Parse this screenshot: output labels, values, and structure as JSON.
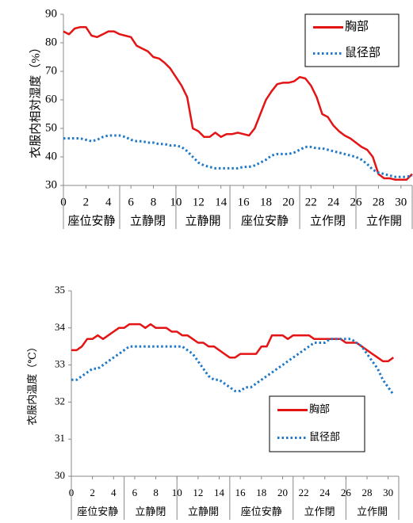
{
  "chart_data": [
    {
      "type": "line",
      "y_label": "衣服内相対湿度（%）",
      "x": [
        0,
        0.5,
        1,
        1.5,
        2,
        2.5,
        3,
        3.5,
        4,
        4.5,
        5,
        5.5,
        6,
        6.5,
        7,
        7.5,
        8,
        8.5,
        9,
        9.5,
        10,
        10.5,
        11,
        11.5,
        12,
        12.5,
        13,
        13.5,
        14,
        14.5,
        15,
        15.5,
        16,
        16.5,
        17,
        17.5,
        18,
        18.5,
        19,
        19.5,
        20,
        20.5,
        21,
        21.5,
        22,
        22.5,
        23,
        23.5,
        24,
        24.5,
        25,
        25.5,
        26,
        26.5,
        27,
        27.5,
        28,
        28.5,
        29,
        29.5,
        30,
        30.5,
        31
      ],
      "series": [
        {
          "name": "胸部",
          "color": "#e41414",
          "dash": "solid",
          "values": [
            84,
            83,
            85,
            85.5,
            85.5,
            82.5,
            82,
            83,
            84,
            84,
            83,
            82.5,
            82,
            79,
            78,
            77,
            75,
            74.5,
            73,
            71,
            68,
            65,
            61,
            50,
            49,
            47,
            47,
            48.5,
            47,
            48,
            48,
            48.5,
            48,
            47.5,
            50,
            55,
            60,
            63,
            65.5,
            66,
            66,
            66.5,
            68,
            67.5,
            65,
            61,
            55,
            54,
            51,
            49,
            47.5,
            46.5,
            45,
            43.5,
            42.5,
            40,
            34,
            32.5,
            32.5,
            32,
            32,
            32,
            34
          ]
        },
        {
          "name": "鼠径部",
          "color": "#1f78c8",
          "dash": "dotted",
          "values": [
            46.5,
            46.5,
            46.5,
            46.5,
            46,
            45.5,
            46,
            47,
            47.5,
            47.5,
            47.5,
            47,
            46,
            45.5,
            45.5,
            45,
            45,
            44.5,
            44.5,
            44,
            44,
            43.5,
            42,
            40,
            38,
            37,
            36.5,
            36,
            36,
            36,
            36,
            36,
            36.5,
            36.5,
            37,
            38,
            39,
            40.5,
            41,
            41,
            41,
            41.5,
            42.5,
            43.5,
            43.5,
            43,
            43,
            42.5,
            42,
            41.5,
            41,
            40.5,
            40,
            39,
            37.5,
            35.5,
            34.5,
            34,
            33.5,
            33,
            33,
            33,
            33.5
          ]
        }
      ],
      "xlim": [
        0,
        31
      ],
      "xticks": [
        0,
        2,
        4,
        6,
        8,
        10,
        12,
        14,
        16,
        18,
        20,
        22,
        24,
        26,
        28,
        30
      ],
      "ylim": [
        30,
        90
      ],
      "yticks": [
        30,
        40,
        50,
        60,
        70,
        80,
        90
      ],
      "phases": {
        "labels": [
          "座位安静",
          "立静閉",
          "立静開",
          "座位安静",
          "立作閉",
          "立作開"
        ],
        "bounds": [
          0,
          5,
          10,
          14.8,
          21,
          26,
          31
        ]
      },
      "legend": "top-right"
    },
    {
      "type": "line",
      "y_label": "衣服内温度（℃）",
      "x": [
        0,
        0.5,
        1,
        1.5,
        2,
        2.5,
        3,
        3.5,
        4,
        4.5,
        5,
        5.5,
        6,
        6.5,
        7,
        7.5,
        8,
        8.5,
        9,
        9.5,
        10,
        10.5,
        11,
        11.5,
        12,
        12.5,
        13,
        13.5,
        14,
        14.5,
        15,
        15.5,
        16,
        16.5,
        17,
        17.5,
        18,
        18.5,
        19,
        19.5,
        20,
        20.5,
        21,
        21.5,
        22,
        22.5,
        23,
        23.5,
        24,
        24.5,
        25,
        25.5,
        26,
        26.5,
        27,
        27.5,
        28,
        28.5,
        29,
        29.5,
        30,
        30.5
      ],
      "series": [
        {
          "name": "胸部",
          "color": "#e41414",
          "dash": "solid",
          "values": [
            33.4,
            33.4,
            33.5,
            33.7,
            33.7,
            33.8,
            33.7,
            33.8,
            33.9,
            34,
            34,
            34.1,
            34.1,
            34.1,
            34,
            34.1,
            34,
            34,
            34,
            33.9,
            33.9,
            33.8,
            33.8,
            33.7,
            33.6,
            33.6,
            33.5,
            33.5,
            33.4,
            33.3,
            33.2,
            33.2,
            33.3,
            33.3,
            33.3,
            33.3,
            33.5,
            33.5,
            33.8,
            33.8,
            33.8,
            33.7,
            33.8,
            33.8,
            33.8,
            33.8,
            33.7,
            33.7,
            33.7,
            33.7,
            33.7,
            33.7,
            33.6,
            33.6,
            33.6,
            33.5,
            33.4,
            33.3,
            33.2,
            33.1,
            33.1,
            33.2
          ]
        },
        {
          "name": "鼠径部",
          "color": "#1f78c8",
          "dash": "dotted",
          "values": [
            32.6,
            32.6,
            32.7,
            32.8,
            32.9,
            32.9,
            33,
            33.1,
            33.2,
            33.3,
            33.4,
            33.5,
            33.5,
            33.5,
            33.5,
            33.5,
            33.5,
            33.5,
            33.5,
            33.5,
            33.5,
            33.5,
            33.4,
            33.3,
            33.1,
            32.9,
            32.7,
            32.6,
            32.6,
            32.5,
            32.4,
            32.3,
            32.3,
            32.4,
            32.4,
            32.5,
            32.6,
            32.7,
            32.8,
            32.9,
            33,
            33.1,
            33.2,
            33.3,
            33.4,
            33.5,
            33.6,
            33.6,
            33.6,
            33.7,
            33.7,
            33.7,
            33.7,
            33.7,
            33.6,
            33.5,
            33.3,
            33.1,
            32.9,
            32.6,
            32.4,
            32.2
          ]
        }
      ],
      "xlim": [
        0,
        31
      ],
      "xticks": [
        0,
        2,
        4,
        6,
        8,
        10,
        12,
        14,
        16,
        18,
        20,
        22,
        24,
        26,
        28,
        30
      ],
      "ylim": [
        30,
        35
      ],
      "yticks": [
        30,
        31,
        32,
        33,
        34,
        35
      ],
      "phases": {
        "labels": [
          "座位安静",
          "立静閉",
          "立静開",
          "座位安静",
          "立作閉",
          "立作開"
        ],
        "bounds": [
          0,
          5,
          10,
          15,
          21,
          26,
          31
        ]
      },
      "legend": "center-right"
    }
  ]
}
